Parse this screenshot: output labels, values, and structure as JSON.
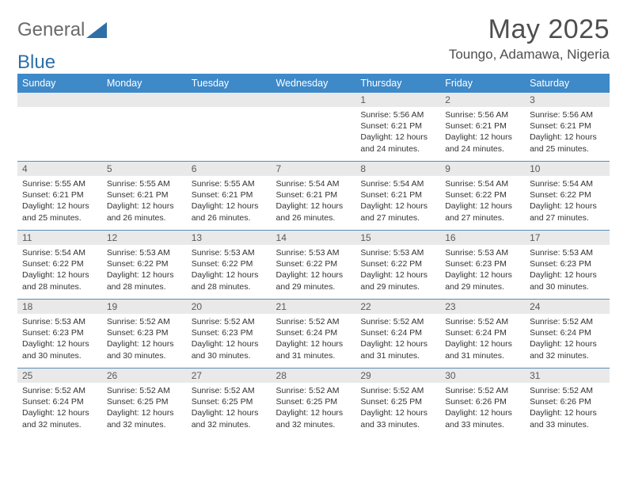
{
  "logo": {
    "text1": "General",
    "text2": "Blue"
  },
  "title": "May 2025",
  "subtitle": "Toungo, Adamawa, Nigeria",
  "colors": {
    "header_bg": "#3e89c8",
    "header_text": "#ffffff",
    "daynum_bg": "#e9e9e9",
    "daynum_text": "#5a5a5a",
    "border": "#5b8db9",
    "body_text": "#333333",
    "title_text": "#4f4f4f",
    "logo_gray": "#6a6a6a",
    "logo_blue": "#2f6fa8"
  },
  "day_names": [
    "Sunday",
    "Monday",
    "Tuesday",
    "Wednesday",
    "Thursday",
    "Friday",
    "Saturday"
  ],
  "weeks": [
    [
      {
        "n": "",
        "sr": "",
        "ss": "",
        "dl": ""
      },
      {
        "n": "",
        "sr": "",
        "ss": "",
        "dl": ""
      },
      {
        "n": "",
        "sr": "",
        "ss": "",
        "dl": ""
      },
      {
        "n": "",
        "sr": "",
        "ss": "",
        "dl": ""
      },
      {
        "n": "1",
        "sr": "Sunrise: 5:56 AM",
        "ss": "Sunset: 6:21 PM",
        "dl": "Daylight: 12 hours and 24 minutes."
      },
      {
        "n": "2",
        "sr": "Sunrise: 5:56 AM",
        "ss": "Sunset: 6:21 PM",
        "dl": "Daylight: 12 hours and 24 minutes."
      },
      {
        "n": "3",
        "sr": "Sunrise: 5:56 AM",
        "ss": "Sunset: 6:21 PM",
        "dl": "Daylight: 12 hours and 25 minutes."
      }
    ],
    [
      {
        "n": "4",
        "sr": "Sunrise: 5:55 AM",
        "ss": "Sunset: 6:21 PM",
        "dl": "Daylight: 12 hours and 25 minutes."
      },
      {
        "n": "5",
        "sr": "Sunrise: 5:55 AM",
        "ss": "Sunset: 6:21 PM",
        "dl": "Daylight: 12 hours and 26 minutes."
      },
      {
        "n": "6",
        "sr": "Sunrise: 5:55 AM",
        "ss": "Sunset: 6:21 PM",
        "dl": "Daylight: 12 hours and 26 minutes."
      },
      {
        "n": "7",
        "sr": "Sunrise: 5:54 AM",
        "ss": "Sunset: 6:21 PM",
        "dl": "Daylight: 12 hours and 26 minutes."
      },
      {
        "n": "8",
        "sr": "Sunrise: 5:54 AM",
        "ss": "Sunset: 6:21 PM",
        "dl": "Daylight: 12 hours and 27 minutes."
      },
      {
        "n": "9",
        "sr": "Sunrise: 5:54 AM",
        "ss": "Sunset: 6:22 PM",
        "dl": "Daylight: 12 hours and 27 minutes."
      },
      {
        "n": "10",
        "sr": "Sunrise: 5:54 AM",
        "ss": "Sunset: 6:22 PM",
        "dl": "Daylight: 12 hours and 27 minutes."
      }
    ],
    [
      {
        "n": "11",
        "sr": "Sunrise: 5:54 AM",
        "ss": "Sunset: 6:22 PM",
        "dl": "Daylight: 12 hours and 28 minutes."
      },
      {
        "n": "12",
        "sr": "Sunrise: 5:53 AM",
        "ss": "Sunset: 6:22 PM",
        "dl": "Daylight: 12 hours and 28 minutes."
      },
      {
        "n": "13",
        "sr": "Sunrise: 5:53 AM",
        "ss": "Sunset: 6:22 PM",
        "dl": "Daylight: 12 hours and 28 minutes."
      },
      {
        "n": "14",
        "sr": "Sunrise: 5:53 AM",
        "ss": "Sunset: 6:22 PM",
        "dl": "Daylight: 12 hours and 29 minutes."
      },
      {
        "n": "15",
        "sr": "Sunrise: 5:53 AM",
        "ss": "Sunset: 6:22 PM",
        "dl": "Daylight: 12 hours and 29 minutes."
      },
      {
        "n": "16",
        "sr": "Sunrise: 5:53 AM",
        "ss": "Sunset: 6:23 PM",
        "dl": "Daylight: 12 hours and 29 minutes."
      },
      {
        "n": "17",
        "sr": "Sunrise: 5:53 AM",
        "ss": "Sunset: 6:23 PM",
        "dl": "Daylight: 12 hours and 30 minutes."
      }
    ],
    [
      {
        "n": "18",
        "sr": "Sunrise: 5:53 AM",
        "ss": "Sunset: 6:23 PM",
        "dl": "Daylight: 12 hours and 30 minutes."
      },
      {
        "n": "19",
        "sr": "Sunrise: 5:52 AM",
        "ss": "Sunset: 6:23 PM",
        "dl": "Daylight: 12 hours and 30 minutes."
      },
      {
        "n": "20",
        "sr": "Sunrise: 5:52 AM",
        "ss": "Sunset: 6:23 PM",
        "dl": "Daylight: 12 hours and 30 minutes."
      },
      {
        "n": "21",
        "sr": "Sunrise: 5:52 AM",
        "ss": "Sunset: 6:24 PM",
        "dl": "Daylight: 12 hours and 31 minutes."
      },
      {
        "n": "22",
        "sr": "Sunrise: 5:52 AM",
        "ss": "Sunset: 6:24 PM",
        "dl": "Daylight: 12 hours and 31 minutes."
      },
      {
        "n": "23",
        "sr": "Sunrise: 5:52 AM",
        "ss": "Sunset: 6:24 PM",
        "dl": "Daylight: 12 hours and 31 minutes."
      },
      {
        "n": "24",
        "sr": "Sunrise: 5:52 AM",
        "ss": "Sunset: 6:24 PM",
        "dl": "Daylight: 12 hours and 32 minutes."
      }
    ],
    [
      {
        "n": "25",
        "sr": "Sunrise: 5:52 AM",
        "ss": "Sunset: 6:24 PM",
        "dl": "Daylight: 12 hours and 32 minutes."
      },
      {
        "n": "26",
        "sr": "Sunrise: 5:52 AM",
        "ss": "Sunset: 6:25 PM",
        "dl": "Daylight: 12 hours and 32 minutes."
      },
      {
        "n": "27",
        "sr": "Sunrise: 5:52 AM",
        "ss": "Sunset: 6:25 PM",
        "dl": "Daylight: 12 hours and 32 minutes."
      },
      {
        "n": "28",
        "sr": "Sunrise: 5:52 AM",
        "ss": "Sunset: 6:25 PM",
        "dl": "Daylight: 12 hours and 32 minutes."
      },
      {
        "n": "29",
        "sr": "Sunrise: 5:52 AM",
        "ss": "Sunset: 6:25 PM",
        "dl": "Daylight: 12 hours and 33 minutes."
      },
      {
        "n": "30",
        "sr": "Sunrise: 5:52 AM",
        "ss": "Sunset: 6:26 PM",
        "dl": "Daylight: 12 hours and 33 minutes."
      },
      {
        "n": "31",
        "sr": "Sunrise: 5:52 AM",
        "ss": "Sunset: 6:26 PM",
        "dl": "Daylight: 12 hours and 33 minutes."
      }
    ]
  ]
}
